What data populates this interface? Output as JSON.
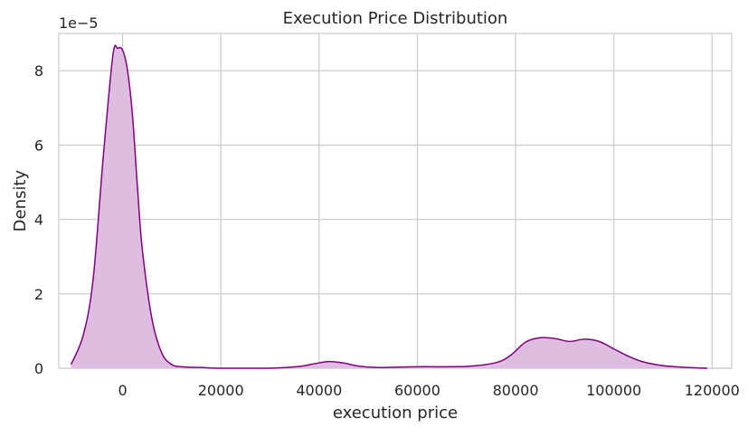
{
  "chart_data": {
    "type": "area",
    "title": "Execution Price Distribution",
    "xlabel": "execution price",
    "ylabel": "Density",
    "y_scale_label": "1e−5",
    "xlim": [
      -13000,
      124000
    ],
    "ylim": [
      0,
      9.0
    ],
    "x_ticks": [
      0,
      20000,
      40000,
      60000,
      80000,
      100000,
      120000
    ],
    "x_tick_labels": [
      "0",
      "20000",
      "40000",
      "60000",
      "80000",
      "100000",
      "120000"
    ],
    "y_ticks": [
      0,
      2,
      4,
      6,
      8
    ],
    "y_tick_labels": [
      "0",
      "2",
      "4",
      "6",
      "8"
    ],
    "grid": true,
    "series": [
      {
        "color": "#800080",
        "fill": "#dfbde0",
        "x": [
          -10500,
          -8000,
          -6000,
          -4000,
          -2000,
          -1000,
          0,
          1000,
          2000,
          3000,
          4000,
          6000,
          8000,
          10000,
          12000,
          16000,
          20000,
          30000,
          36000,
          39000,
          42000,
          45000,
          48000,
          52000,
          60000,
          70000,
          76000,
          79000,
          82000,
          85000,
          88000,
          91000,
          94000,
          97000,
          100000,
          103000,
          106000,
          110000,
          115000,
          119000
        ],
        "values": [
          0.1,
          0.9,
          2.4,
          5.6,
          8.4,
          8.6,
          8.55,
          8.0,
          6.8,
          4.9,
          3.2,
          1.3,
          0.4,
          0.1,
          0.04,
          0.02,
          0.0,
          0.0,
          0.05,
          0.12,
          0.18,
          0.14,
          0.06,
          0.02,
          0.04,
          0.05,
          0.15,
          0.35,
          0.7,
          0.82,
          0.8,
          0.72,
          0.78,
          0.72,
          0.52,
          0.32,
          0.17,
          0.07,
          0.02,
          0.0
        ]
      }
    ]
  }
}
